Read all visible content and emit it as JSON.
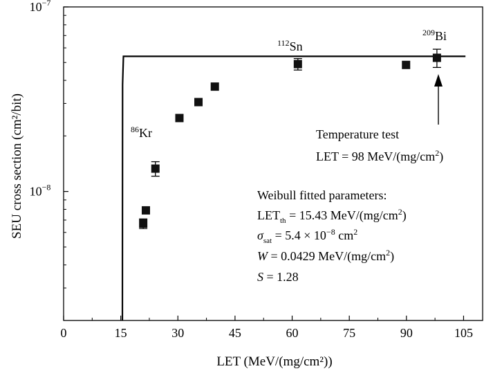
{
  "chart_data": {
    "type": "scatter",
    "xlabel": "LET (MeV/(mg/cm²))",
    "ylabel": "SEU cross section (cm²/bit)",
    "xlim": [
      0,
      110
    ],
    "ylim": [
      2e-09,
      1e-07
    ],
    "yscale": "log",
    "x_ticks": [
      0,
      15,
      30,
      45,
      60,
      75,
      90,
      105
    ],
    "y_ticks": [
      {
        "value": 1e-08,
        "mantissa": "10",
        "exp": "−8"
      },
      {
        "value": 1e-07,
        "mantissa": "10",
        "exp": "−7"
      }
    ],
    "grid": false,
    "points": [
      {
        "x": 20.9,
        "y": 6.7e-09,
        "err": 4e-10
      },
      {
        "x": 21.6,
        "y": 7.9e-09,
        "err": 0
      },
      {
        "x": 24.1,
        "y": 1.33e-08,
        "err": 1.2e-09
      },
      {
        "x": 30.4,
        "y": 2.5e-08,
        "err": 0
      },
      {
        "x": 35.4,
        "y": 3.05e-08,
        "err": 0
      },
      {
        "x": 39.7,
        "y": 3.7e-08,
        "err": 0
      },
      {
        "x": 61.5,
        "y": 4.9e-08,
        "err": 3.5e-09
      },
      {
        "x": 89.9,
        "y": 4.85e-08,
        "err": 0
      },
      {
        "x": 98.0,
        "y": 5.3e-08,
        "err": 6e-09
      }
    ],
    "fit": {
      "model": "weibull",
      "let_th": 15.43,
      "sigma_sat": 5.4e-08,
      "w": 0.0429,
      "s": 1.28,
      "x_end": 105.5
    },
    "ion_labels": [
      {
        "mass": "86",
        "symbol": "Kr"
      },
      {
        "mass": "112",
        "symbol": "Sn"
      },
      {
        "mass": "209",
        "symbol": "Bi"
      }
    ],
    "temperature_note": {
      "line1": "Temperature test",
      "line2_prefix": "LET = 98 MeV/(mg/cm",
      "line2_sup": "2",
      "line2_suffix": ")"
    },
    "weibull_box": {
      "title": "Weibull fitted parameters:",
      "let_prefix": "LET",
      "let_sub": "th",
      "let_value": " = 15.43 MeV/(mg/cm",
      "let_sup": "2",
      "let_close": ")",
      "sigma_symbol": "σ",
      "sigma_sub": "sat",
      "sigma_value": " = 5.4 × 10",
      "sigma_exp": "−8",
      "sigma_unit": " cm",
      "sigma_unit_sup": "2",
      "w_symbol": "W",
      "w_value": " = 0.0429 MeV/(mg/cm",
      "w_sup": "2",
      "w_close": ")",
      "s_symbol": "S",
      "s_value": " = 1.28"
    }
  }
}
